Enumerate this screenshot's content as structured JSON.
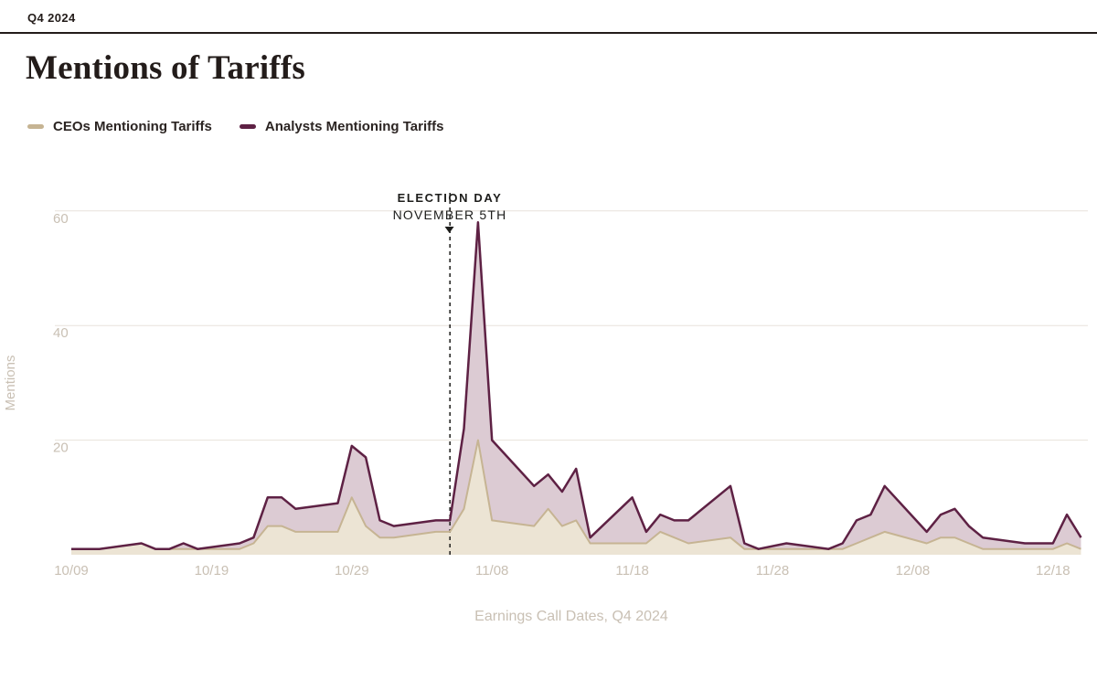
{
  "header": {
    "eyebrow": "Q4 2024",
    "title": "Mentions of Tariffs"
  },
  "legend": [
    {
      "label": "CEOs Mentioning Tariffs",
      "color": "#c6b493"
    },
    {
      "label": "Analysts Mentioning Tariffs",
      "color": "#5e2144"
    }
  ],
  "annotation": {
    "line1": "ELECTION DAY",
    "line2": "NOVEMBER 5TH"
  },
  "chart_data": {
    "type": "area",
    "title": "Mentions of Tariffs",
    "xlabel": "Earnings Call Dates, Q4 2024",
    "ylabel": "Mentions",
    "ylim": [
      0,
      62
    ],
    "yticks": [
      20,
      40,
      60
    ],
    "xticks": [
      "10/09",
      "10/19",
      "10/29",
      "11/08",
      "11/18",
      "11/28",
      "12/08",
      "12/18"
    ],
    "grid": "horizontal",
    "legend_position": "top-left",
    "annotation_x": "11/05",
    "colors": {
      "grid": "#e8e2dc",
      "axis_text": "#c9c0b4",
      "annotation_line": "#1d1d1b"
    },
    "x": [
      "10/09",
      "10/10",
      "10/11",
      "10/14",
      "10/15",
      "10/16",
      "10/17",
      "10/18",
      "10/21",
      "10/22",
      "10/23",
      "10/24",
      "10/25",
      "10/28",
      "10/29",
      "10/30",
      "10/31",
      "11/01",
      "11/04",
      "11/05",
      "11/06",
      "11/07",
      "11/08",
      "11/11",
      "11/12",
      "11/13",
      "11/14",
      "11/15",
      "11/18",
      "11/19",
      "11/20",
      "11/21",
      "11/22",
      "11/25",
      "11/26",
      "11/27",
      "11/29",
      "12/02",
      "12/03",
      "12/04",
      "12/05",
      "12/06",
      "12/09",
      "12/10",
      "12/11",
      "12/12",
      "12/13",
      "12/16",
      "12/17",
      "12/18",
      "12/19",
      "12/20"
    ],
    "series": [
      {
        "name": "CEOs Mentioning Tariffs",
        "color": "#c6b493",
        "fill": "#ece4d4",
        "values": [
          1,
          1,
          1,
          2,
          1,
          1,
          1,
          1,
          1,
          2,
          5,
          5,
          4,
          4,
          10,
          5,
          3,
          3,
          4,
          4,
          8,
          20,
          6,
          5,
          8,
          5,
          6,
          2,
          2,
          2,
          4,
          3,
          2,
          3,
          1,
          1,
          1,
          1,
          1,
          2,
          3,
          4,
          2,
          3,
          3,
          2,
          1,
          1,
          1,
          1,
          2,
          1
        ]
      },
      {
        "name": "Analysts Mentioning Tariffs",
        "color": "#5e2144",
        "fill": "#dccbd3",
        "values": [
          1,
          1,
          1,
          2,
          1,
          1,
          2,
          1,
          2,
          3,
          10,
          10,
          8,
          9,
          19,
          17,
          6,
          5,
          6,
          6,
          22,
          58,
          20,
          12,
          14,
          11,
          15,
          3,
          10,
          4,
          7,
          6,
          6,
          12,
          2,
          1,
          2,
          1,
          2,
          6,
          7,
          12,
          4,
          7,
          8,
          5,
          3,
          2,
          2,
          2,
          7,
          3
        ]
      }
    ]
  }
}
